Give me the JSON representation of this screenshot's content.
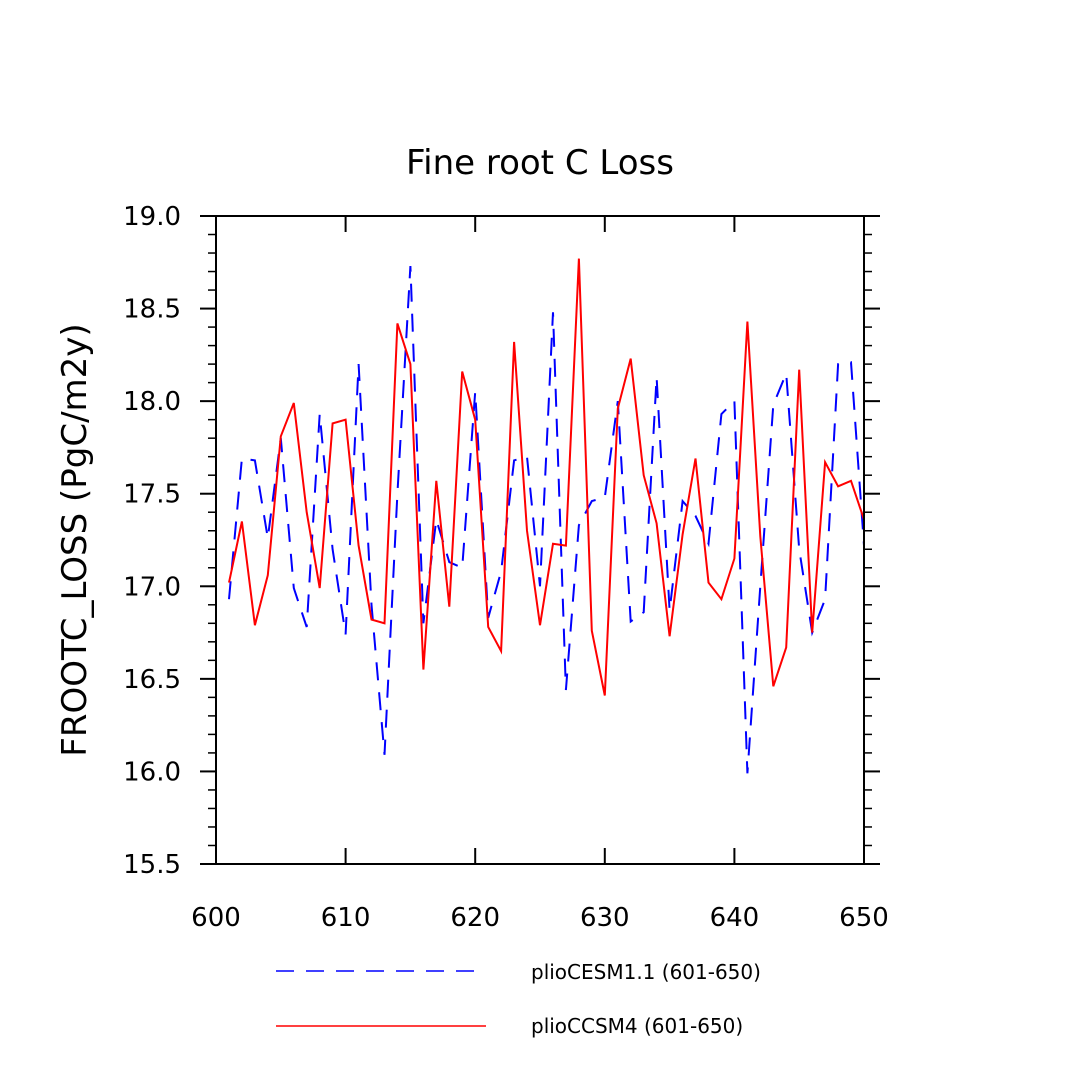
{
  "chart_data": {
    "type": "line",
    "title": "Fine root C Loss",
    "xlabel": "",
    "ylabel": "FROOTC_LOSS  (PgC/m2y)",
    "xlim": [
      600,
      650
    ],
    "ylim": [
      15.5,
      19.0
    ],
    "x_ticks": [
      600,
      610,
      620,
      630,
      640,
      650
    ],
    "y_ticks": [
      15.5,
      16.0,
      16.5,
      17.0,
      17.5,
      18.0,
      18.5,
      19.0
    ],
    "x_tick_labels": [
      "600",
      "610",
      "620",
      "630",
      "640",
      "650"
    ],
    "y_tick_labels": [
      "15.5",
      "16.0",
      "16.5",
      "17.0",
      "17.5",
      "18.0",
      "18.5",
      "19.0"
    ],
    "grid": false,
    "legend_placement": "bottom",
    "x": [
      601,
      602,
      603,
      604,
      605,
      606,
      607,
      608,
      609,
      610,
      611,
      612,
      613,
      614,
      615,
      616,
      617,
      618,
      619,
      620,
      621,
      622,
      623,
      624,
      625,
      626,
      627,
      628,
      629,
      630,
      631,
      632,
      633,
      634,
      635,
      636,
      637,
      638,
      639,
      640,
      641,
      642,
      643,
      644,
      645,
      646,
      647,
      648,
      649,
      650
    ],
    "series": [
      {
        "name": "plioCESM1.1 (601-650)",
        "color": "#0000ff",
        "dash": "dashed",
        "values": [
          16.93,
          17.69,
          17.68,
          17.26,
          17.8,
          16.99,
          16.78,
          17.93,
          17.2,
          16.74,
          18.2,
          16.9,
          16.09,
          17.5,
          18.73,
          16.8,
          17.36,
          17.13,
          17.1,
          18.05,
          16.83,
          17.08,
          17.68,
          17.7,
          17.0,
          18.48,
          16.44,
          17.33,
          17.46,
          17.48,
          18.0,
          16.81,
          16.86,
          18.13,
          16.87,
          17.46,
          17.38,
          17.23,
          17.93,
          18.0,
          15.99,
          17.0,
          17.98,
          18.15,
          17.2,
          16.75,
          16.93,
          18.2,
          18.21,
          17.22
        ]
      },
      {
        "name": "plioCCSM4 (601-650)",
        "color": "#ff0000",
        "dash": "solid",
        "values": [
          17.02,
          17.35,
          16.79,
          17.06,
          17.81,
          17.99,
          17.4,
          16.99,
          17.88,
          17.9,
          17.22,
          16.82,
          16.8,
          18.42,
          18.2,
          16.55,
          17.57,
          16.89,
          18.16,
          17.9,
          16.78,
          16.65,
          18.32,
          17.3,
          16.79,
          17.23,
          17.22,
          18.77,
          16.76,
          16.41,
          17.96,
          18.23,
          17.6,
          17.34,
          16.73,
          17.28,
          17.69,
          17.02,
          16.93,
          17.15,
          18.43,
          17.27,
          16.46,
          16.67,
          18.17,
          16.75,
          17.67,
          17.54,
          17.57,
          17.36
        ]
      }
    ]
  }
}
